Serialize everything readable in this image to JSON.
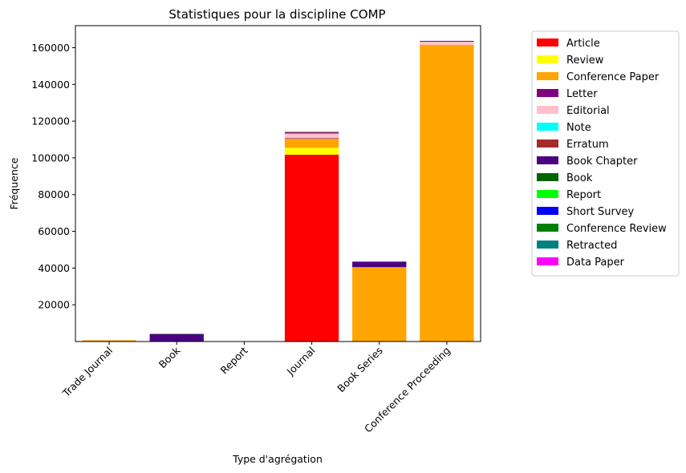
{
  "chart_data": {
    "type": "bar",
    "stacked": true,
    "title": "Statistiques pour la discipline COMP",
    "xlabel": "Type d'agrégation",
    "ylabel": "Fréquence",
    "categories": [
      "Trade Journal",
      "Book",
      "Report",
      "Journal",
      "Book Series",
      "Conference Proceeding"
    ],
    "ylim": [
      0,
      172000
    ],
    "yticks": [
      20000,
      40000,
      60000,
      80000,
      100000,
      120000,
      140000,
      160000
    ],
    "ytick_labels": [
      "20000",
      "40000",
      "60000",
      "80000",
      "100000",
      "120000",
      "140000",
      "160000"
    ],
    "grid": false,
    "legend_position": "outside-right",
    "series": [
      {
        "name": "Article",
        "color": "#ff0000",
        "values": [
          200,
          0,
          0,
          101700,
          0,
          0
        ]
      },
      {
        "name": "Review",
        "color": "#ffff00",
        "values": [
          0,
          0,
          0,
          3800,
          0,
          0
        ]
      },
      {
        "name": "Conference Paper",
        "color": "#ffa500",
        "values": [
          500,
          0,
          0,
          5000,
          40500,
          161500
        ]
      },
      {
        "name": "Letter",
        "color": "#800080",
        "values": [
          0,
          0,
          0,
          300,
          0,
          0
        ]
      },
      {
        "name": "Editorial",
        "color": "#ffc0cb",
        "values": [
          0,
          0,
          0,
          2400,
          0,
          1800
        ]
      },
      {
        "name": "Note",
        "color": "#00ffff",
        "values": [
          0,
          0,
          0,
          100,
          0,
          0
        ]
      },
      {
        "name": "Erratum",
        "color": "#a52a2a",
        "values": [
          0,
          0,
          0,
          700,
          0,
          0
        ]
      },
      {
        "name": "Book Chapter",
        "color": "#4b0082",
        "values": [
          0,
          4000,
          0,
          0,
          3000,
          400
        ]
      },
      {
        "name": "Book",
        "color": "#006400",
        "values": [
          0,
          200,
          0,
          0,
          0,
          0
        ]
      },
      {
        "name": "Report",
        "color": "#00ff00",
        "values": [
          0,
          0,
          0,
          0,
          0,
          0
        ]
      },
      {
        "name": "Short Survey",
        "color": "#0000ff",
        "values": [
          0,
          0,
          0,
          100,
          0,
          0
        ]
      },
      {
        "name": "Conference Review",
        "color": "#008000",
        "values": [
          0,
          0,
          0,
          0,
          0,
          0
        ]
      },
      {
        "name": "Retracted",
        "color": "#008080",
        "values": [
          0,
          0,
          0,
          0,
          0,
          0
        ]
      },
      {
        "name": "Data Paper",
        "color": "#ff00ff",
        "values": [
          0,
          0,
          0,
          0,
          0,
          0
        ]
      }
    ]
  }
}
